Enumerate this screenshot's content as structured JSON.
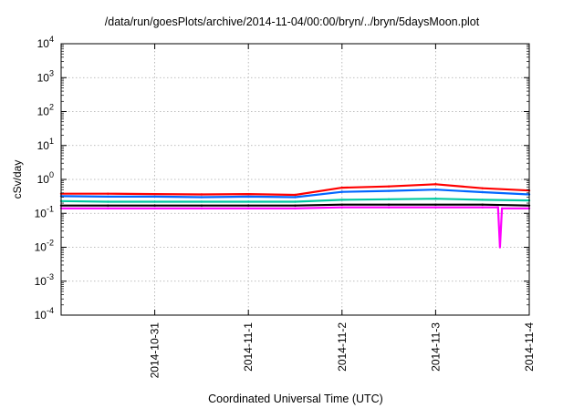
{
  "chart_data": {
    "type": "line",
    "title": "/data/run/goesPlots/archive/2014-11-04/00:00/bryn/../bryn/5daysMoon.plot",
    "xlabel": "Coordinated Universal Time (UTC)",
    "ylabel": "cSv/day",
    "y_scale": "log",
    "ylim": [
      0.0001,
      10000
    ],
    "y_ticks": [
      {
        "base": "10",
        "exp": "-4"
      },
      {
        "base": "10",
        "exp": "-3"
      },
      {
        "base": "10",
        "exp": "-2"
      },
      {
        "base": "10",
        "exp": "-1"
      },
      {
        "base": "10",
        "exp": "0"
      },
      {
        "base": "10",
        "exp": "1"
      },
      {
        "base": "10",
        "exp": "2"
      },
      {
        "base": "10",
        "exp": "3"
      },
      {
        "base": "10",
        "exp": "4"
      }
    ],
    "xlim": [
      "2014-10-30T00:00",
      "2014-11-04T00:00"
    ],
    "x_ticks": [
      "2014-10-31",
      "2014-11-1",
      "2014-11-2",
      "2014-11-3",
      "2014-11-4"
    ],
    "x_tick_times": [
      "2014-10-31T00:00",
      "2014-11-01T00:00",
      "2014-11-02T00:00",
      "2014-11-03T00:00",
      "2014-11-04T00:00"
    ],
    "grid": true,
    "legend": "none",
    "series": [
      {
        "color": "#ff0000",
        "x": [
          "2014-10-30T00:00",
          "2014-10-30T12:00",
          "2014-10-31T00:00",
          "2014-10-31T12:00",
          "2014-11-01T00:00",
          "2014-11-01T12:00",
          "2014-11-02T00:00",
          "2014-11-02T12:00",
          "2014-11-03T00:00",
          "2014-11-03T12:00",
          "2014-11-04T00:00"
        ],
        "values": [
          0.38,
          0.38,
          0.37,
          0.36,
          0.37,
          0.35,
          0.57,
          0.62,
          0.72,
          0.55,
          0.47
        ]
      },
      {
        "color": "#0066ff",
        "x": [
          "2014-10-30T00:00",
          "2014-10-30T12:00",
          "2014-10-31T00:00",
          "2014-10-31T12:00",
          "2014-11-01T00:00",
          "2014-11-01T12:00",
          "2014-11-02T00:00",
          "2014-11-02T12:00",
          "2014-11-03T00:00",
          "2014-11-03T12:00",
          "2014-11-04T00:00"
        ],
        "values": [
          0.32,
          0.31,
          0.31,
          0.3,
          0.31,
          0.3,
          0.43,
          0.46,
          0.5,
          0.42,
          0.36
        ]
      },
      {
        "color": "#00c8a0",
        "x": [
          "2014-10-30T00:00",
          "2014-10-30T12:00",
          "2014-10-31T00:00",
          "2014-10-31T12:00",
          "2014-11-01T00:00",
          "2014-11-01T12:00",
          "2014-11-02T00:00",
          "2014-11-02T12:00",
          "2014-11-03T00:00",
          "2014-11-03T12:00",
          "2014-11-04T00:00"
        ],
        "values": [
          0.23,
          0.22,
          0.22,
          0.22,
          0.22,
          0.22,
          0.25,
          0.26,
          0.27,
          0.25,
          0.24
        ]
      },
      {
        "color": "#000000",
        "x": [
          "2014-10-30T00:00",
          "2014-10-30T12:00",
          "2014-10-31T00:00",
          "2014-10-31T12:00",
          "2014-11-01T00:00",
          "2014-11-01T12:00",
          "2014-11-02T00:00",
          "2014-11-02T12:00",
          "2014-11-03T00:00",
          "2014-11-03T12:00",
          "2014-11-04T00:00"
        ],
        "values": [
          0.17,
          0.17,
          0.17,
          0.17,
          0.17,
          0.17,
          0.18,
          0.18,
          0.18,
          0.18,
          0.17
        ]
      },
      {
        "color": "#ff00ff",
        "x": [
          "2014-10-30T00:00",
          "2014-10-30T12:00",
          "2014-10-31T00:00",
          "2014-10-31T12:00",
          "2014-11-01T00:00",
          "2014-11-01T12:00",
          "2014-11-02T00:00",
          "2014-11-02T12:00",
          "2014-11-03T00:00",
          "2014-11-03T12:00",
          "2014-11-03T16:00",
          "2014-11-03T16:30",
          "2014-11-03T17:00",
          "2014-11-04T00:00"
        ],
        "values": [
          0.14,
          0.14,
          0.14,
          0.14,
          0.14,
          0.14,
          0.15,
          0.15,
          0.15,
          0.15,
          0.15,
          0.01,
          0.14,
          0.14
        ]
      }
    ]
  }
}
